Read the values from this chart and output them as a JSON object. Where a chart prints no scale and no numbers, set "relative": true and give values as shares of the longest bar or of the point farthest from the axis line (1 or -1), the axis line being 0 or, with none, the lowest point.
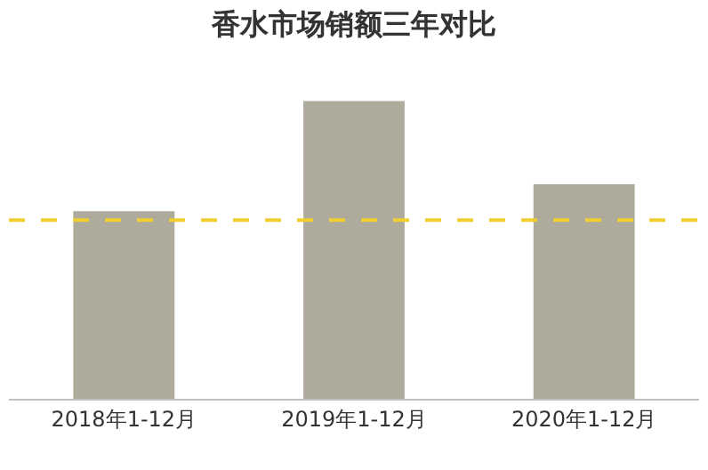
{
  "chart_data": {
    "type": "bar",
    "title": "香水市场销额三年对比",
    "relative": true,
    "categories": [
      "2018年1-12月",
      "2019年1-12月",
      "2020年1-12月"
    ],
    "values": [
      0.63,
      1,
      0.72
    ],
    "color": "#aeab9c",
    "ref_lines": [
      {
        "axis": "y",
        "value": 0.6,
        "color": "#f0d030",
        "line_style": "dashed"
      }
    ],
    "legend": false
  }
}
